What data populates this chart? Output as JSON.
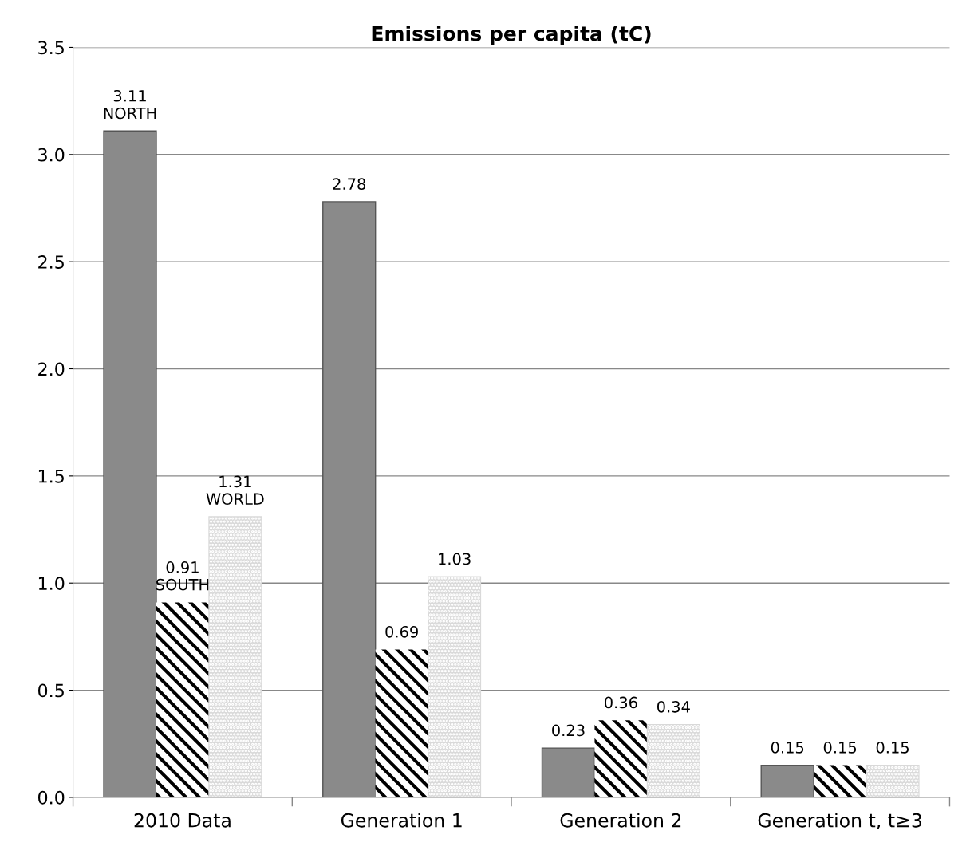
{
  "chart_data": {
    "type": "bar",
    "title": "Emissions per capita (tC)",
    "categories": [
      "2010 Data",
      "Generation 1",
      "Generation 2",
      "Generation t, t≥3"
    ],
    "series": [
      {
        "name": "NORTH",
        "color": "#8a8a8a",
        "values": [
          3.11,
          2.78,
          0.23,
          0.15
        ]
      },
      {
        "name": "SOUTH",
        "color": "#000000",
        "values": [
          0.91,
          0.69,
          0.36,
          0.15
        ]
      },
      {
        "name": "WORLD",
        "color": "#d9d9d9",
        "values": [
          1.31,
          1.03,
          0.34,
          0.15
        ]
      }
    ],
    "ylim": [
      0,
      3.5
    ],
    "yticks": [
      {
        "value": 0,
        "label": "0.0"
      },
      {
        "value": 0.5,
        "label": "0.5"
      },
      {
        "value": 1,
        "label": "1.0"
      },
      {
        "value": 1.5,
        "label": "1.5"
      },
      {
        "value": 2,
        "label": "2.0"
      },
      {
        "value": 2.5,
        "label": "2.5"
      },
      {
        "value": 3,
        "label": "3.0"
      },
      {
        "value": 3.5,
        "label": "3.5"
      }
    ],
    "grid": "y",
    "data_labels": true,
    "legend": false
  }
}
